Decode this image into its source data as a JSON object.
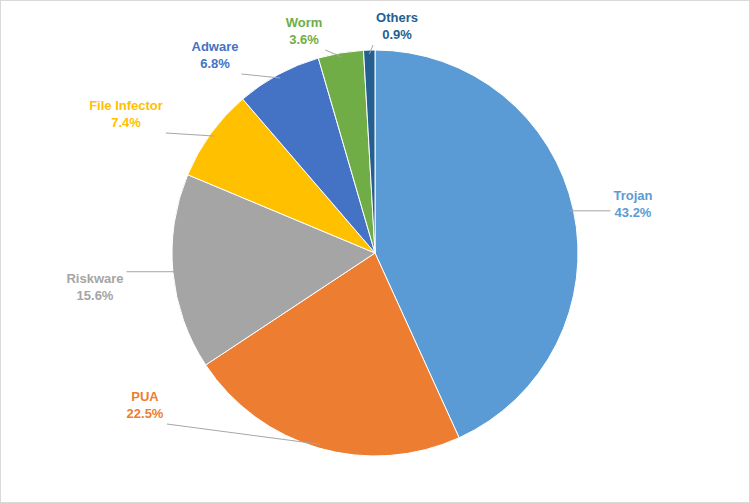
{
  "chart_data": {
    "type": "pie",
    "categories": [
      "Trojan",
      "PUA",
      "Riskware",
      "File Infector",
      "Adware",
      "Worm",
      "Others"
    ],
    "values": [
      43.2,
      22.5,
      15.6,
      7.4,
      6.8,
      3.6,
      0.9
    ],
    "value_labels": [
      "43.2%",
      "22.5%",
      "15.6%",
      "7.4%",
      "6.8%",
      "3.6%",
      "0.9%"
    ],
    "colors": [
      "#5B9BD5",
      "#ED7D31",
      "#A5A5A5",
      "#FFC000",
      "#4472C4",
      "#70AD47",
      "#255E91"
    ],
    "data_labels": true
  }
}
